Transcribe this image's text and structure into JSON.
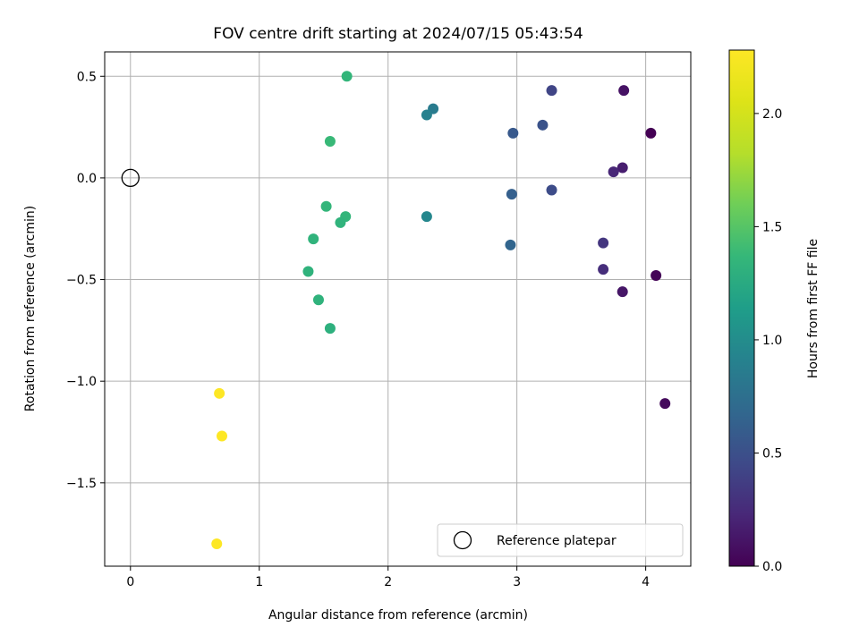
{
  "chart_data": {
    "type": "scatter",
    "title": "FOV centre drift starting at 2024/07/15 05:43:54",
    "xlabel": "Angular distance from reference (arcmin)",
    "ylabel": "Rotation from reference (arcmin)",
    "xlim": [
      -0.2,
      4.35
    ],
    "ylim": [
      -1.91,
      0.62
    ],
    "xticks": [
      0,
      1,
      2,
      3,
      4
    ],
    "xtick_labels": [
      "0",
      "1",
      "2",
      "3",
      "4"
    ],
    "yticks": [
      0.5,
      0.0,
      -0.5,
      -1.0,
      -1.5
    ],
    "ytick_labels": [
      "0.5",
      "0.0",
      "−0.5",
      "−1.0",
      "−1.5"
    ],
    "grid": true,
    "colorscale": "viridis",
    "colorbar": {
      "label": "Hours from first FF file",
      "range": [
        0.0,
        2.28
      ],
      "ticks": [
        0.0,
        0.5,
        1.0,
        1.5,
        2.0
      ],
      "tick_labels": [
        "0.0",
        "0.5",
        "1.0",
        "1.5",
        "2.0"
      ]
    },
    "legend": {
      "position": "bottom-right",
      "entries": [
        "Reference platepar"
      ]
    },
    "reference_point": {
      "x": 0.0,
      "y": 0.0,
      "label": "Reference platepar"
    },
    "points": [
      {
        "x": 4.04,
        "y": 0.22,
        "c": 0.0
      },
      {
        "x": 4.08,
        "y": -0.48,
        "c": 0.02
      },
      {
        "x": 4.15,
        "y": -1.11,
        "c": 0.05
      },
      {
        "x": 3.83,
        "y": 0.43,
        "c": 0.1
      },
      {
        "x": 3.82,
        "y": -0.56,
        "c": 0.12
      },
      {
        "x": 3.82,
        "y": 0.05,
        "c": 0.17
      },
      {
        "x": 3.75,
        "y": 0.03,
        "c": 0.22
      },
      {
        "x": 3.67,
        "y": -0.45,
        "c": 0.27
      },
      {
        "x": 3.67,
        "y": -0.32,
        "c": 0.32
      },
      {
        "x": 3.27,
        "y": 0.43,
        "c": 0.42
      },
      {
        "x": 3.27,
        "y": -0.06,
        "c": 0.47
      },
      {
        "x": 3.2,
        "y": 0.26,
        "c": 0.52
      },
      {
        "x": 2.97,
        "y": 0.22,
        "c": 0.57
      },
      {
        "x": 2.96,
        "y": -0.08,
        "c": 0.62
      },
      {
        "x": 2.95,
        "y": -0.33,
        "c": 0.67
      },
      {
        "x": 2.35,
        "y": 0.34,
        "c": 0.85
      },
      {
        "x": 2.3,
        "y": 0.31,
        "c": 0.9
      },
      {
        "x": 2.3,
        "y": -0.19,
        "c": 0.95
      },
      {
        "x": 1.68,
        "y": 0.5,
        "c": 1.35
      },
      {
        "x": 1.55,
        "y": 0.18,
        "c": 1.38
      },
      {
        "x": 1.52,
        "y": -0.14,
        "c": 1.35
      },
      {
        "x": 1.67,
        "y": -0.19,
        "c": 1.35
      },
      {
        "x": 1.63,
        "y": -0.22,
        "c": 1.33
      },
      {
        "x": 1.42,
        "y": -0.3,
        "c": 1.33
      },
      {
        "x": 1.38,
        "y": -0.46,
        "c": 1.32
      },
      {
        "x": 1.46,
        "y": -0.6,
        "c": 1.32
      },
      {
        "x": 1.55,
        "y": -0.74,
        "c": 1.3
      },
      {
        "x": 0.69,
        "y": -1.06,
        "c": 2.28
      },
      {
        "x": 0.71,
        "y": -1.27,
        "c": 2.28
      },
      {
        "x": 0.67,
        "y": -1.8,
        "c": 2.28
      }
    ]
  }
}
